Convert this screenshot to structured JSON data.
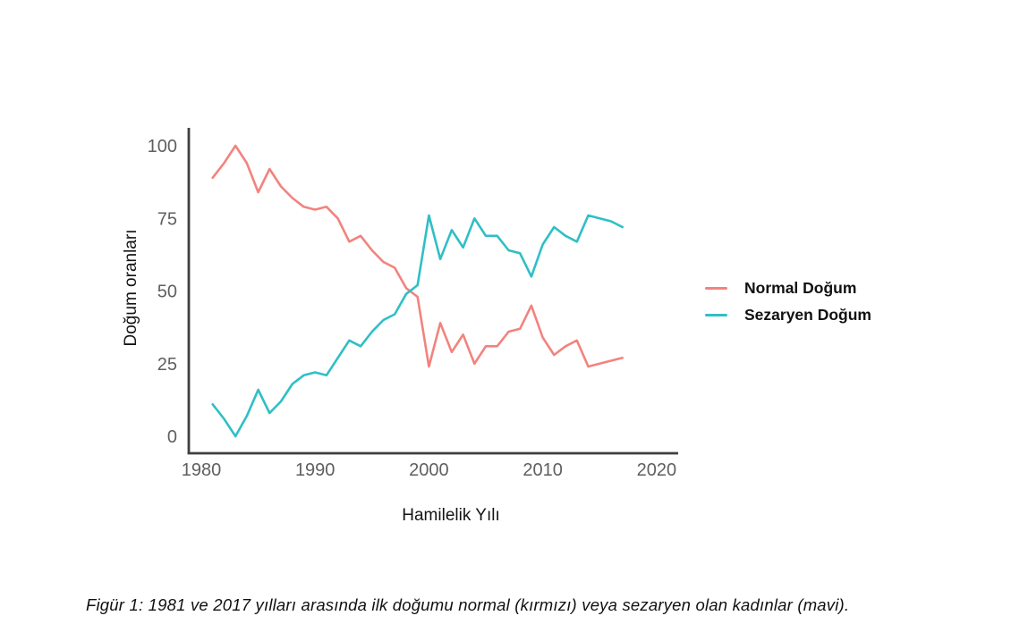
{
  "figure": {
    "caption": "Figür 1: 1981 ve 2017 yılları arasında ilk doğumu normal (kırmızı) veya sezaryen olan kadınlar (mavi)."
  },
  "chart_data": {
    "type": "line",
    "title": "",
    "xlabel": "Hamilelik Yılı",
    "ylabel": "Doğum oranları",
    "x": [
      1981,
      1982,
      1983,
      1984,
      1985,
      1986,
      1987,
      1988,
      1989,
      1990,
      1991,
      1992,
      1993,
      1994,
      1995,
      1996,
      1997,
      1998,
      1999,
      2000,
      2001,
      2002,
      2003,
      2004,
      2005,
      2006,
      2007,
      2008,
      2009,
      2010,
      2011,
      2012,
      2013,
      2014,
      2015,
      2016,
      2017
    ],
    "series": [
      {
        "name": "Normal Doğum",
        "color": "#f2837e",
        "values": [
          89,
          94,
          100,
          94,
          84,
          92,
          86,
          82,
          79,
          78,
          79,
          75,
          67,
          69,
          64,
          60,
          58,
          51,
          48,
          24,
          39,
          29,
          35,
          25,
          31,
          31,
          36,
          37,
          45,
          34,
          28,
          31,
          33,
          24,
          25,
          26,
          27
        ]
      },
      {
        "name": "Sezaryen Doğum",
        "color": "#2fbfc6",
        "values": [
          11,
          6,
          0,
          7,
          16,
          8,
          12,
          18,
          21,
          22,
          21,
          27,
          33,
          31,
          36,
          40,
          42,
          49,
          52,
          76,
          61,
          71,
          65,
          75,
          69,
          69,
          64,
          63,
          55,
          66,
          72,
          69,
          67,
          76,
          75,
          74,
          72
        ]
      }
    ],
    "xticks": [
      1980,
      1990,
      2000,
      2010,
      2020
    ],
    "yticks": [
      0,
      25,
      50,
      75,
      100
    ],
    "xlim": [
      1978.9,
      2021.9
    ],
    "ylim": [
      0,
      100
    ],
    "grid": false,
    "legend_position": "right",
    "colors": {
      "axis": "#3f3f3f",
      "tick_labels": "#5f5f5f",
      "text": "#141414"
    }
  }
}
